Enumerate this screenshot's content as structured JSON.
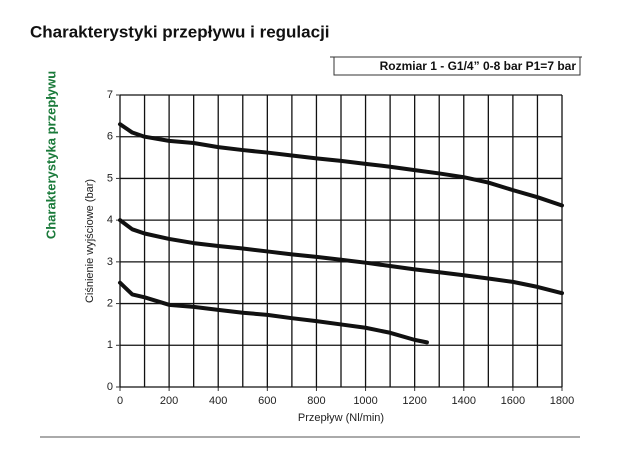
{
  "chart_data": {
    "type": "line",
    "title": "Charakterystyki przepływu i regulacji",
    "subtitle": "Rozmiar 1 - G1/4” 0-8 bar P1=7 bar",
    "side_label": "Charakterystyka przepływu",
    "side_label_color": "#1a7a3a",
    "x_label": "Przepływ (Nl/min)",
    "y_label": "Ciśnienie wyjściowe (bar)",
    "xlim": [
      0,
      1800
    ],
    "ylim": [
      0,
      7
    ],
    "xticks": [
      0,
      200,
      400,
      600,
      800,
      1000,
      1200,
      1400,
      1600,
      1800
    ],
    "x_minor_grid": [
      100,
      300,
      500,
      700,
      900,
      1100,
      1300,
      1500,
      1700
    ],
    "yticks": [
      0,
      1,
      2,
      3,
      4,
      5,
      6,
      7
    ],
    "grid": true,
    "series": [
      {
        "color": "#111111",
        "x": [
          0,
          50,
          100,
          200,
          300,
          400,
          500,
          600,
          700,
          800,
          900,
          1000,
          1100,
          1200,
          1300,
          1400,
          1500,
          1600,
          1700,
          1800
        ],
        "values": [
          6.3,
          6.1,
          6.0,
          5.9,
          5.85,
          5.75,
          5.68,
          5.62,
          5.55,
          5.48,
          5.42,
          5.35,
          5.28,
          5.2,
          5.12,
          5.03,
          4.9,
          4.72,
          4.55,
          4.35
        ]
      },
      {
        "color": "#111111",
        "x": [
          0,
          50,
          100,
          200,
          300,
          400,
          500,
          600,
          700,
          800,
          900,
          1000,
          1100,
          1200,
          1300,
          1400,
          1500,
          1600,
          1700,
          1800
        ],
        "values": [
          4.0,
          3.78,
          3.68,
          3.55,
          3.45,
          3.38,
          3.32,
          3.25,
          3.18,
          3.12,
          3.05,
          2.98,
          2.9,
          2.82,
          2.75,
          2.68,
          2.6,
          2.52,
          2.4,
          2.25
        ]
      },
      {
        "color": "#111111",
        "x": [
          0,
          50,
          100,
          200,
          300,
          400,
          500,
          600,
          700,
          800,
          900,
          1000,
          1100,
          1200,
          1250
        ],
        "values": [
          2.5,
          2.22,
          2.15,
          1.97,
          1.92,
          1.85,
          1.78,
          1.73,
          1.65,
          1.58,
          1.5,
          1.42,
          1.3,
          1.13,
          1.07
        ]
      }
    ]
  }
}
